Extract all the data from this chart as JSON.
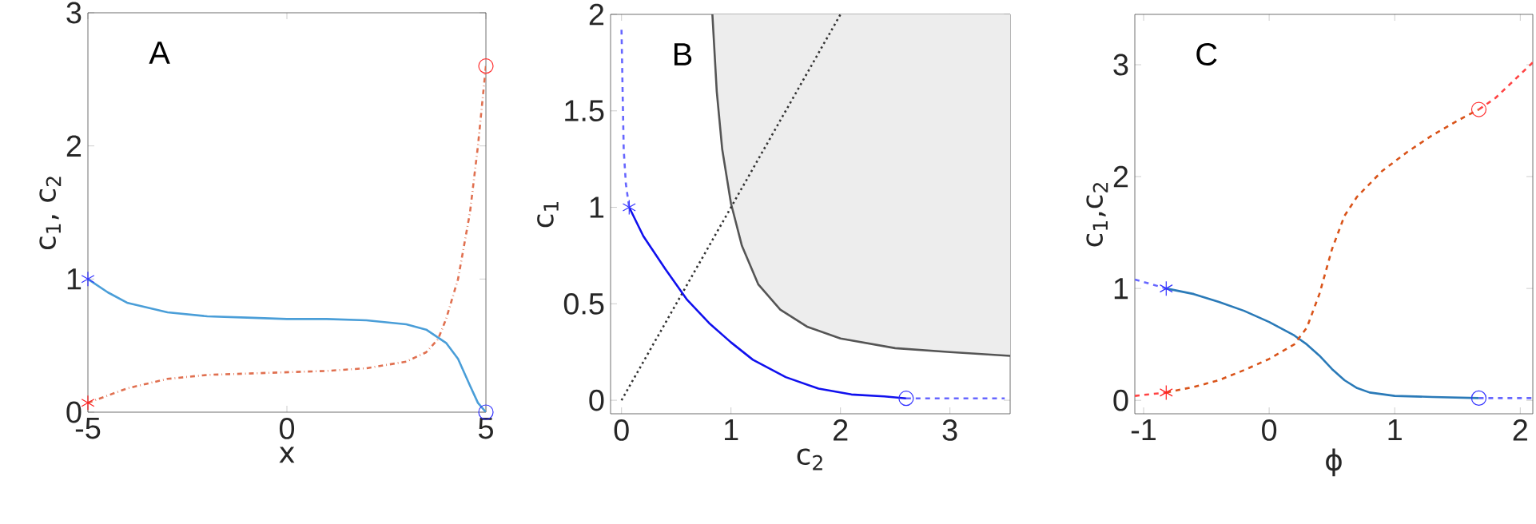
{
  "chart_data": [
    {
      "type": "line",
      "xlabel": "x",
      "ylabel": "c$_{1}$, c$_{2}$",
      "annotations": [
        "A"
      ],
      "xlim": [
        -5,
        5
      ],
      "ylim": [
        0,
        3
      ],
      "xticks": [
        -5,
        0,
        5
      ],
      "yticks": [
        0,
        1,
        2,
        3
      ],
      "series": [
        {
          "color": "#4a9ed8",
          "line_style": "solid",
          "x": [
            -5,
            -4.5,
            -4,
            -3,
            -2,
            -1,
            0,
            1,
            2,
            3,
            3.5,
            4,
            4.3,
            4.6,
            4.8,
            5
          ],
          "values": [
            1.0,
            0.9,
            0.82,
            0.75,
            0.72,
            0.71,
            0.7,
            0.7,
            0.69,
            0.66,
            0.62,
            0.52,
            0.4,
            0.2,
            0.07,
            0.0
          ]
        },
        {
          "color": "#e07050",
          "line_style": "dashdot",
          "x": [
            -5,
            -4,
            -3,
            -2,
            -1,
            0,
            1,
            2,
            3,
            3.5,
            3.8,
            4,
            4.3,
            4.6,
            4.8,
            5
          ],
          "values": [
            0.07,
            0.18,
            0.25,
            0.28,
            0.29,
            0.3,
            0.31,
            0.33,
            0.38,
            0.45,
            0.55,
            0.7,
            1.0,
            1.5,
            2.0,
            2.6
          ]
        },
        {
          "type": "scatter",
          "marker": "cross",
          "color": "#3333ff",
          "x": [
            -5
          ],
          "values": [
            1.0
          ]
        },
        {
          "type": "scatter",
          "marker": "cross",
          "color": "#ff2222",
          "x": [
            -5
          ],
          "values": [
            0.07
          ]
        },
        {
          "type": "scatter",
          "marker": "circle",
          "color": "#ff3333",
          "x": [
            5
          ],
          "values": [
            2.6
          ]
        },
        {
          "type": "scatter",
          "marker": "circle",
          "color": "#3333ff",
          "x": [
            5
          ],
          "values": [
            0.0
          ]
        }
      ]
    },
    {
      "type": "line",
      "xlabel": "c$_{2}$",
      "ylabel": "c$_{1}$",
      "annotations": [
        "B"
      ],
      "xlim": [
        -0.1,
        3.55
      ],
      "ylim": [
        -0.07,
        2
      ],
      "xticks": [
        0,
        1,
        2,
        3
      ],
      "yticks": [
        0,
        0.5,
        1,
        1.5,
        2
      ],
      "series": [
        {
          "color": "#555555",
          "line_style": "solid",
          "x": [
            0.83,
            0.87,
            0.92,
            1.0,
            1.1,
            1.25,
            1.45,
            1.7,
            2.0,
            2.5,
            3.0,
            3.55
          ],
          "values": [
            2.0,
            1.6,
            1.3,
            1.02,
            0.8,
            0.6,
            0.47,
            0.38,
            0.32,
            0.27,
            0.25,
            0.23
          ],
          "lower": [
            2.0,
            1.6,
            1.3,
            1.02,
            0.8,
            0.6,
            0.47,
            0.38,
            0.32,
            0.27,
            0.25,
            0.23
          ],
          "upper": [
            2,
            2,
            2,
            2,
            2,
            2,
            2,
            2,
            2,
            2,
            2,
            2
          ]
        },
        {
          "color": "#333333",
          "line_style": "dotted",
          "x": [
            0,
            2
          ],
          "values": [
            0,
            2
          ]
        },
        {
          "color": "#1010ee",
          "line_style": "solid",
          "x": [
            0.07,
            0.2,
            0.4,
            0.6,
            0.8,
            1.0,
            1.2,
            1.5,
            1.8,
            2.1,
            2.4,
            2.6
          ],
          "values": [
            1.0,
            0.85,
            0.68,
            0.52,
            0.4,
            0.3,
            0.21,
            0.12,
            0.06,
            0.03,
            0.02,
            0.01
          ]
        },
        {
          "color": "#6666ff",
          "line_style": "dashed",
          "x": [
            0.0,
            0.01,
            0.02,
            0.04,
            0.07
          ],
          "values": [
            1.92,
            1.6,
            1.3,
            1.12,
            1.0
          ]
        },
        {
          "color": "#6666ff",
          "line_style": "dashed",
          "x": [
            2.6,
            3.5
          ],
          "values": [
            0.01,
            0.01
          ]
        },
        {
          "type": "scatter",
          "marker": "cross",
          "color": "#3333ff",
          "x": [
            0.07
          ],
          "values": [
            1.0
          ]
        },
        {
          "type": "scatter",
          "marker": "circle",
          "color": "#3333ff",
          "x": [
            2.6
          ],
          "values": [
            0.01
          ]
        }
      ]
    },
    {
      "type": "line",
      "xlabel": "ϕ",
      "ylabel": "c$_{1}$,c$_{2}$",
      "annotations": [
        "C"
      ],
      "xlim": [
        -1.07,
        2.1
      ],
      "ylim": [
        -0.12,
        3.45
      ],
      "xticks": [
        -1,
        0,
        1,
        2
      ],
      "yticks": [
        0,
        1,
        2,
        3
      ],
      "series": [
        {
          "color": "#6666ff",
          "line_style": "dashed",
          "x": [
            -1.07,
            -0.82
          ],
          "values": [
            1.08,
            1.0
          ]
        },
        {
          "color": "#6666ff",
          "line_style": "dashed",
          "x": [
            1.67,
            2.1
          ],
          "values": [
            0.02,
            0.02
          ]
        },
        {
          "color": "#ff4444",
          "line_style": "dashed",
          "x": [
            -1.07,
            -0.82
          ],
          "values": [
            0.04,
            0.07
          ]
        },
        {
          "color": "#ff4444",
          "line_style": "dashed",
          "x": [
            1.67,
            1.8,
            2.1
          ],
          "values": [
            2.6,
            2.7,
            3.02
          ]
        },
        {
          "color": "#2a7ab8",
          "line_style": "solid",
          "x": [
            -0.82,
            -0.6,
            -0.4,
            -0.2,
            0,
            0.2,
            0.3,
            0.4,
            0.5,
            0.6,
            0.7,
            0.8,
            1.0,
            1.3,
            1.67
          ],
          "values": [
            1.0,
            0.95,
            0.88,
            0.8,
            0.7,
            0.58,
            0.5,
            0.4,
            0.28,
            0.18,
            0.11,
            0.07,
            0.04,
            0.03,
            0.02
          ]
        },
        {
          "color": "#d95319",
          "line_style": "dashed",
          "x": [
            -0.82,
            -0.6,
            -0.4,
            -0.2,
            0,
            0.2,
            0.3,
            0.4,
            0.5,
            0.6,
            0.7,
            0.9,
            1.1,
            1.3,
            1.5,
            1.67
          ],
          "values": [
            0.07,
            0.12,
            0.18,
            0.27,
            0.37,
            0.5,
            0.65,
            0.95,
            1.35,
            1.65,
            1.82,
            2.05,
            2.22,
            2.37,
            2.5,
            2.6
          ]
        },
        {
          "type": "scatter",
          "marker": "cross",
          "color": "#3333ff",
          "x": [
            -0.82
          ],
          "values": [
            1.0
          ]
        },
        {
          "type": "scatter",
          "marker": "cross",
          "color": "#ff2222",
          "x": [
            -0.82
          ],
          "values": [
            0.07
          ]
        },
        {
          "type": "scatter",
          "marker": "circle",
          "color": "#ff3333",
          "x": [
            1.67
          ],
          "values": [
            2.6
          ]
        },
        {
          "type": "scatter",
          "marker": "circle",
          "color": "#3333ff",
          "x": [
            1.67
          ],
          "values": [
            0.02
          ]
        }
      ]
    }
  ]
}
